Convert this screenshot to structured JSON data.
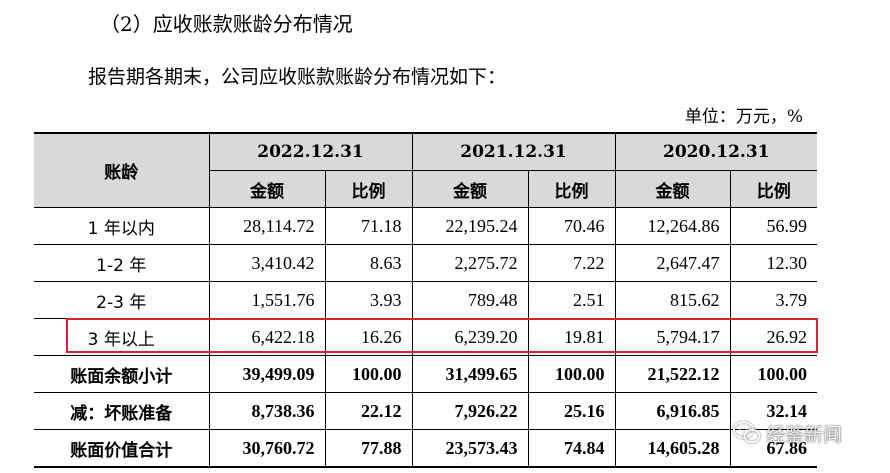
{
  "heading": "（2）应收账款账龄分布情况",
  "intro": "报告期各期末，公司应收账款账龄分布情况如下：",
  "unit": "单位：万元，%",
  "table": {
    "corner": "账龄",
    "periods": [
      "2022.12.31",
      "2021.12.31",
      "2020.12.31"
    ],
    "subheaders": [
      "金额",
      "比例",
      "金额",
      "比例",
      "金额",
      "比例"
    ],
    "rows": [
      {
        "label": "1 年以内",
        "values": [
          "28,114.72",
          "71.18",
          "22,195.24",
          "70.46",
          "12,264.86",
          "56.99"
        ]
      },
      {
        "label": "1-2 年",
        "values": [
          "3,410.42",
          "8.63",
          "2,275.72",
          "7.22",
          "2,647.47",
          "12.30"
        ]
      },
      {
        "label": "2-3 年",
        "values": [
          "1,551.76",
          "3.93",
          "789.48",
          "2.51",
          "815.62",
          "3.79"
        ]
      },
      {
        "label": "3 年以上",
        "values": [
          "6,422.18",
          "16.26",
          "6,239.20",
          "19.81",
          "5,794.17",
          "26.92"
        ]
      },
      {
        "label": "账面余额小计",
        "values": [
          "39,499.09",
          "100.00",
          "31,499.65",
          "100.00",
          "21,522.12",
          "100.00"
        ]
      },
      {
        "label": "减：坏账准备",
        "values": [
          "8,738.36",
          "22.12",
          "7,926.22",
          "25.16",
          "6,916.85",
          "32.14"
        ]
      },
      {
        "label": "账面价值合计",
        "values": [
          "30,760.72",
          "77.88",
          "23,573.43",
          "74.84",
          "14,605.28",
          "67.86"
        ]
      }
    ]
  },
  "watermark": {
    "text": "经鉴新闻",
    "icon": "wechat-icon"
  },
  "colors": {
    "header_bg": "#d9d9d9",
    "highlight_border": "#e0202a"
  }
}
